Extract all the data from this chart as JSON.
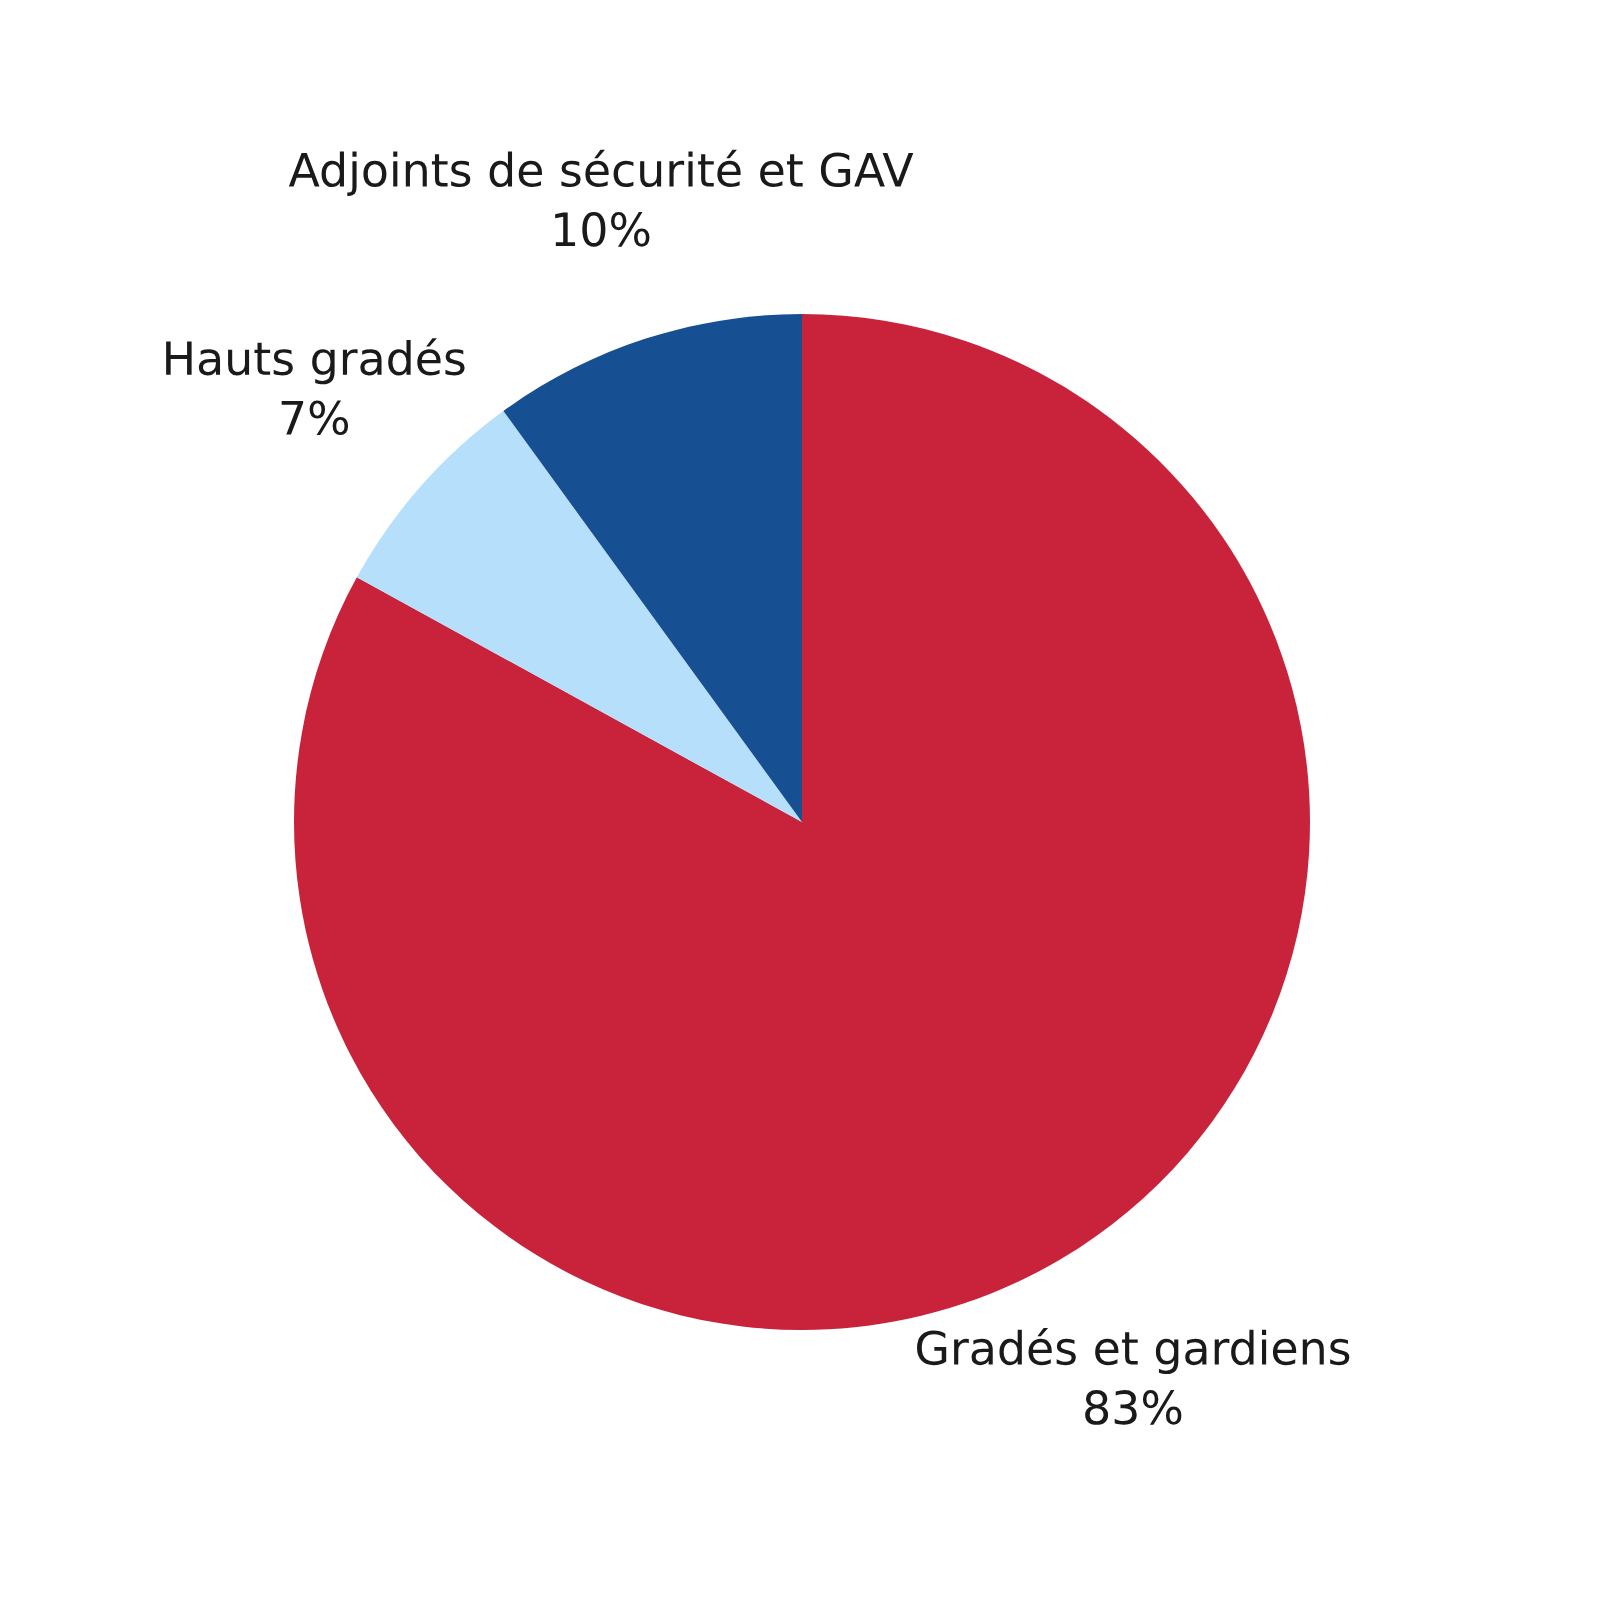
{
  "chart_data": {
    "type": "pie",
    "categories": [
      "Gradés et gardiens",
      "Hauts gradés",
      "Adjoints de sécurité et GAV"
    ],
    "values": [
      83,
      7,
      10
    ],
    "value_labels": [
      "83%",
      "7%",
      "10%"
    ],
    "colors": [
      "#c8233a",
      "#b6dffb",
      "#164f92"
    ]
  }
}
